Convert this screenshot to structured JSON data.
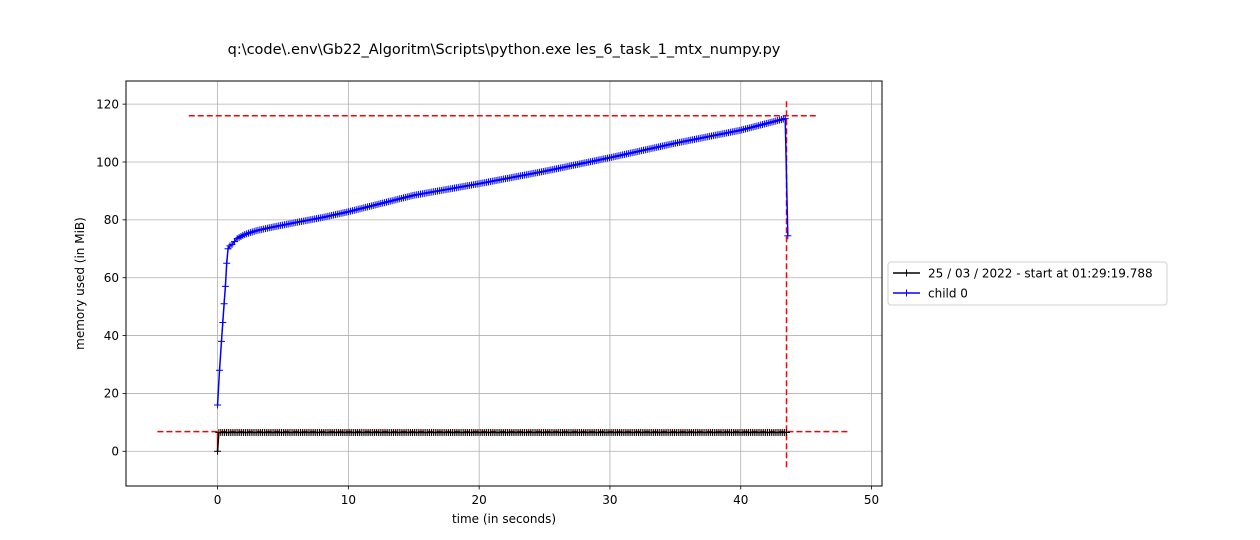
{
  "chart_data": {
    "type": "line",
    "title": "q:\\code\\.env\\Gb22_Algoritm\\Scripts\\python.exe les_6_task_1_mtx_numpy.py",
    "xlabel": "time (in seconds)",
    "ylabel": "memory used (in MiB)",
    "xlim": [
      -7,
      50.8
    ],
    "ylim": [
      -12,
      128
    ],
    "xticks": [
      0,
      10,
      20,
      30,
      40,
      50
    ],
    "yticks": [
      0,
      20,
      40,
      60,
      80,
      100,
      120
    ],
    "xtick_labels": [
      "0",
      "10",
      "20",
      "30",
      "40",
      "50"
    ],
    "ytick_labels": [
      "0",
      "20",
      "40",
      "60",
      "80",
      "100",
      "120"
    ],
    "grid": true,
    "legend_position": "outside-right",
    "series": [
      {
        "name": "25 / 03 / 2022 - start at 01:29:19.788",
        "color": "#000000",
        "marker": "+",
        "t_start": 0.0,
        "t_end": 43.5,
        "y_start": 0.0,
        "y_level": 6.5
      },
      {
        "name": "child 0",
        "color": "#0000ff",
        "marker": "+",
        "x": [
          0.0,
          0.15,
          0.3,
          0.4,
          0.5,
          0.6,
          0.7,
          0.8,
          0.95,
          1.1,
          1.3,
          1.5,
          2.0,
          2.5,
          3.0,
          4.0,
          5.0,
          6.0,
          8.0,
          10.0,
          15.0,
          20.0,
          25.0,
          30.0,
          35.0,
          40.0,
          43.4,
          43.6
        ],
        "y": [
          16.0,
          28.0,
          38.0,
          44.5,
          51.0,
          57.0,
          65.0,
          70.0,
          71.0,
          71.5,
          72.5,
          73.5,
          74.8,
          75.6,
          76.3,
          77.3,
          78.2,
          79.1,
          80.8,
          82.8,
          88.5,
          92.5,
          96.8,
          101.5,
          106.5,
          111.0,
          115.0,
          74.5
        ]
      }
    ],
    "reference_lines": [
      {
        "orientation": "horizontal",
        "y": 116,
        "x_range": [
          -2.2,
          45.8
        ],
        "color": "#ff0000",
        "style": "dashed"
      },
      {
        "orientation": "horizontal",
        "y": 6.8,
        "x_range": [
          -4.6,
          48.2
        ],
        "color": "#ff0000",
        "style": "dashed"
      },
      {
        "orientation": "vertical",
        "x": 43.5,
        "y_range": [
          -5.5,
          122
        ],
        "color": "#ff0000",
        "style": "dashed"
      },
      {
        "orientation": "vertical",
        "x": 0.0,
        "y_range": [
          0,
          6.8
        ],
        "color": "#ff0000",
        "style": "solid"
      }
    ]
  }
}
